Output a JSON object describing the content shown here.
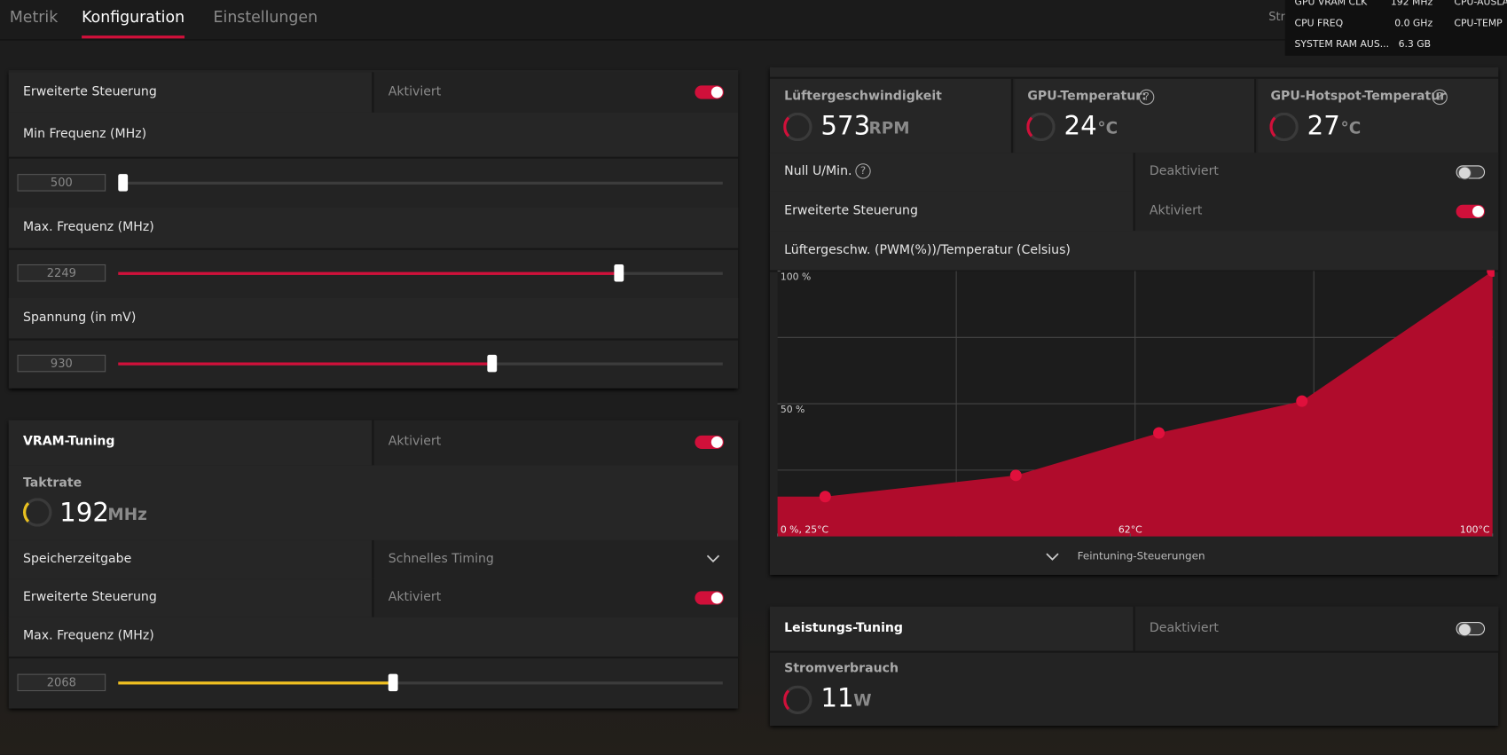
{
  "tabs": [
    "Metrik",
    "Konfiguration",
    "Einstellungen"
  ],
  "overlay": {
    "streaming": "Strea",
    "rows": [
      [
        "GPU VRAM CLK",
        "192 MHz",
        "CPU-AUSLA"
      ],
      [
        "CPU FREQ",
        "0.0 GHz",
        "CPU-TEMP"
      ],
      [
        "SYSTEM RAM AUS...",
        "6.3 GB"
      ]
    ]
  },
  "gpu_tuning": {
    "advanced_label": "Erweiterte Steuerung",
    "advanced_state": "Aktiviert",
    "min_freq_label": "Min Frequenz (MHz)",
    "min_freq_value": "500",
    "max_freq_label": "Max. Frequenz (MHz)",
    "max_freq_value": "2249",
    "voltage_label": "Spannung (in mV)",
    "voltage_value": "930"
  },
  "vram_tuning": {
    "title": "VRAM-Tuning",
    "state": "Aktiviert",
    "clock_label": "Taktrate",
    "clock_value": "192",
    "clock_unit": "MHz",
    "timing_label": "Speicherzeitgabe",
    "timing_value": "Schnelles Timing",
    "advanced_label": "Erweiterte Steuerung",
    "advanced_state": "Aktiviert",
    "max_freq_label": "Max. Frequenz (MHz)",
    "max_freq_value": "2068"
  },
  "fan_tuning": {
    "metrics": [
      {
        "label": "Lüftergeschwindigkeit",
        "value": "573",
        "unit": "RPM"
      },
      {
        "label": "GPU-Temperatur:",
        "value": "24",
        "unit": "°C"
      },
      {
        "label": "GPU-Hotspot-Temperatur",
        "value": "27",
        "unit": "°C"
      }
    ],
    "zero_rpm_label": "Null U/Min.",
    "zero_rpm_state": "Deaktiviert",
    "advanced_label": "Erweiterte Steuerung",
    "advanced_state": "Aktiviert",
    "curve_title": "Lüftergeschw. (PWM(%))/Temperatur (Celsius)",
    "chart_data": {
      "type": "area",
      "x": [
        30,
        50,
        65,
        80,
        100
      ],
      "values": [
        15,
        23,
        39,
        51,
        100
      ],
      "color": "#b00c2c",
      "xlim": [
        25,
        100
      ],
      "ylim": [
        0,
        100
      ],
      "xticks": [
        {
          "value": 25,
          "label": "0 %, 25°C"
        },
        {
          "value": 62,
          "label": "62°C"
        },
        {
          "value": 100,
          "label": "100°C"
        }
      ],
      "yticks": [
        {
          "value": 100,
          "label": "100 %"
        },
        {
          "value": 50,
          "label": "50 %"
        }
      ],
      "grid": true
    },
    "fine_tuning": "Feintuning-Steuerungen"
  },
  "power_tuning": {
    "title": "Leistungs-Tuning",
    "state": "Deaktiviert",
    "usage_label": "Stromverbrauch",
    "usage_value": "11",
    "usage_unit": "W"
  }
}
